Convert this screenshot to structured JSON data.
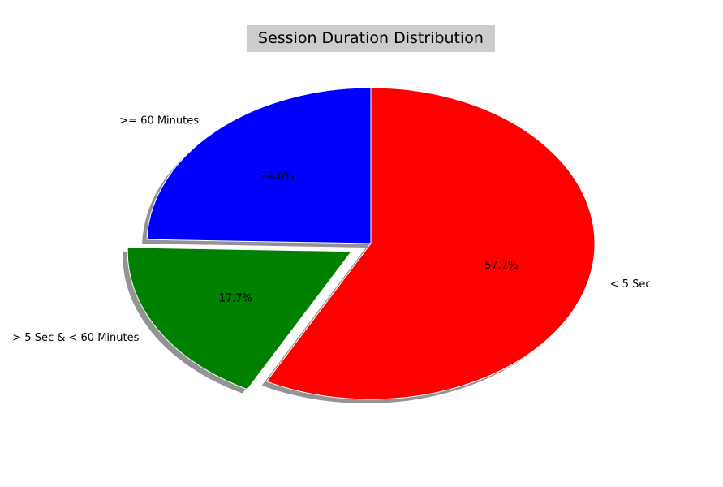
{
  "chart_data": {
    "type": "pie",
    "title": "Session Duration Distribution",
    "start_angle_deg": 90,
    "direction": "clockwise",
    "shadow": true,
    "slices": [
      {
        "label": "< 5 Sec",
        "value": 57.7,
        "pct_label": "57.7%",
        "color": "#ff0000",
        "explode": 0
      },
      {
        "label": "> 5 Sec & < 60 Minutes",
        "value": 17.7,
        "pct_label": "17.7%",
        "color": "#008000",
        "explode": 0.1
      },
      {
        "label": ">= 60 Minutes",
        "value": 24.6,
        "pct_label": "24.6%",
        "color": "#0000ff",
        "explode": 0
      }
    ]
  },
  "colors": {
    "title_box": "#cccccc",
    "shadow": "#808080"
  }
}
